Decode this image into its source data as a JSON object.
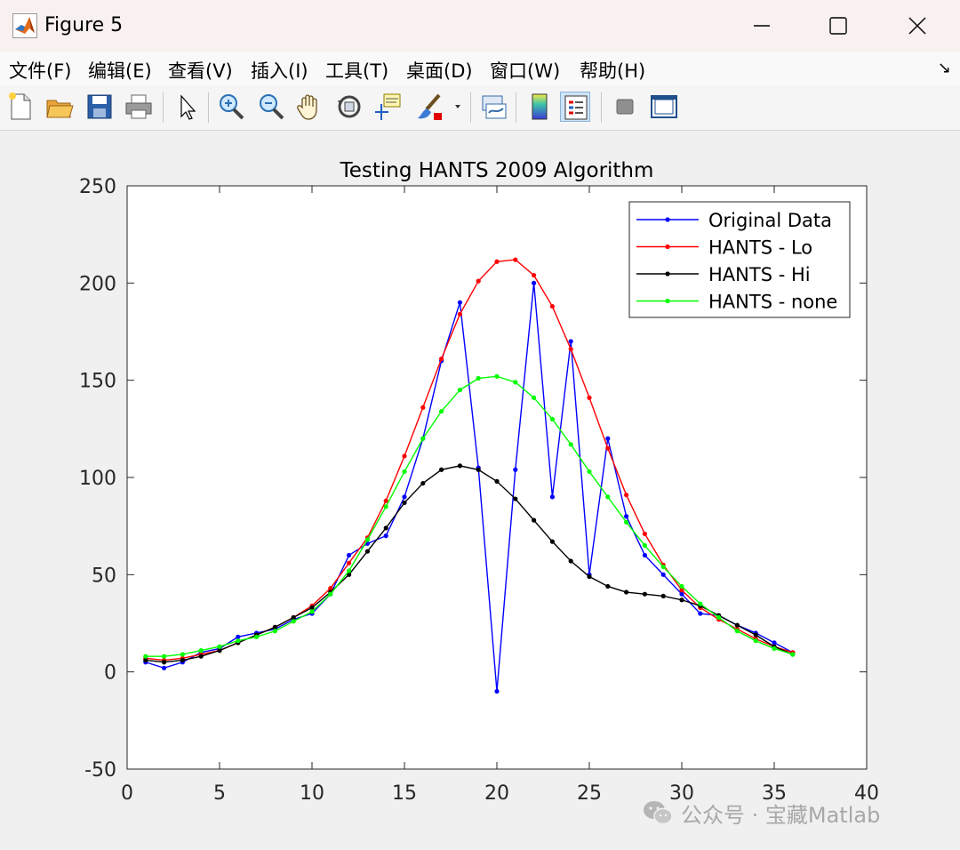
{
  "window": {
    "title": "Figure 5",
    "minimize_icon": "minimize-icon",
    "maximize_icon": "maximize-icon",
    "close_icon": "close-icon"
  },
  "menu": {
    "items": [
      "文件(F)",
      "编辑(E)",
      "查看(V)",
      "插入(I)",
      "工具(T)",
      "桌面(D)",
      "窗口(W)",
      "帮助(H)"
    ],
    "overflow": "↘"
  },
  "toolbar": {
    "icons": [
      "new-figure-icon",
      "open-file-icon",
      "save-icon",
      "print-icon",
      "edit-plot-arrow-icon",
      "zoom-in-icon",
      "zoom-out-icon",
      "pan-hand-icon",
      "rotate-3d-icon",
      "data-cursor-icon",
      "brush-icon",
      "brush-dropdown-icon",
      "link-plot-icon",
      "colorbar-icon",
      "legend-icon",
      "hide-plot-tools-icon",
      "show-plot-tools-icon"
    ],
    "active": "legend-icon"
  },
  "colors": {
    "original": "#0000ff",
    "lo": "#ff0000",
    "hi": "#000000",
    "none": "#00ff00"
  },
  "chart_data": {
    "type": "line",
    "title": "Testing HANTS 2009 Algorithm",
    "xlabel": "",
    "ylabel": "",
    "xlim": [
      0,
      40
    ],
    "ylim": [
      -50,
      250
    ],
    "xticks": [
      0,
      5,
      10,
      15,
      20,
      25,
      30,
      35,
      40
    ],
    "yticks": [
      -50,
      0,
      50,
      100,
      150,
      200,
      250
    ],
    "grid": false,
    "legend_position": "top-right",
    "x": [
      1,
      2,
      3,
      4,
      5,
      6,
      7,
      8,
      9,
      10,
      11,
      12,
      13,
      14,
      15,
      16,
      17,
      18,
      19,
      20,
      21,
      22,
      23,
      24,
      25,
      26,
      27,
      28,
      29,
      30,
      31,
      32,
      33,
      34,
      35,
      36
    ],
    "series": [
      {
        "name": "Original Data",
        "color": "#0000ff",
        "values": [
          5,
          2,
          5,
          10,
          12,
          18,
          20,
          22,
          27,
          30,
          40,
          60,
          66,
          70,
          90,
          120,
          160,
          190,
          105,
          -10,
          104,
          200,
          90,
          170,
          50,
          120,
          80,
          60,
          50,
          40,
          30,
          29,
          24,
          20,
          15,
          10
        ]
      },
      {
        "name": "HANTS - Lo",
        "color": "#ff0000",
        "values": [
          7,
          6,
          7,
          9,
          11,
          15,
          19,
          23,
          28,
          34,
          43,
          56,
          69,
          88,
          111,
          136,
          161,
          184,
          201,
          211,
          212,
          204,
          188,
          166,
          141,
          115,
          91,
          71,
          55,
          42,
          33,
          27,
          22,
          17,
          13,
          10
        ]
      },
      {
        "name": "HANTS - Hi",
        "color": "#000000",
        "values": [
          6,
          5,
          6,
          8,
          11,
          15,
          19,
          23,
          28,
          33,
          41,
          50,
          62,
          74,
          87,
          97,
          104,
          106,
          104,
          98,
          89,
          78,
          67,
          57,
          49,
          44,
          41,
          40,
          39,
          37,
          34,
          29,
          24,
          19,
          13,
          9
        ]
      },
      {
        "name": "HANTS - none",
        "color": "#00ff00",
        "values": [
          8,
          8,
          9,
          11,
          13,
          16,
          18,
          21,
          26,
          31,
          40,
          52,
          68,
          85,
          103,
          120,
          134,
          145,
          151,
          152,
          149,
          141,
          130,
          117,
          103,
          90,
          77,
          65,
          54,
          44,
          35,
          28,
          21,
          16,
          12,
          9
        ]
      }
    ]
  },
  "watermark": {
    "text": "公众号 · 宝藏Matlab",
    "icon": "wechat-icon"
  }
}
